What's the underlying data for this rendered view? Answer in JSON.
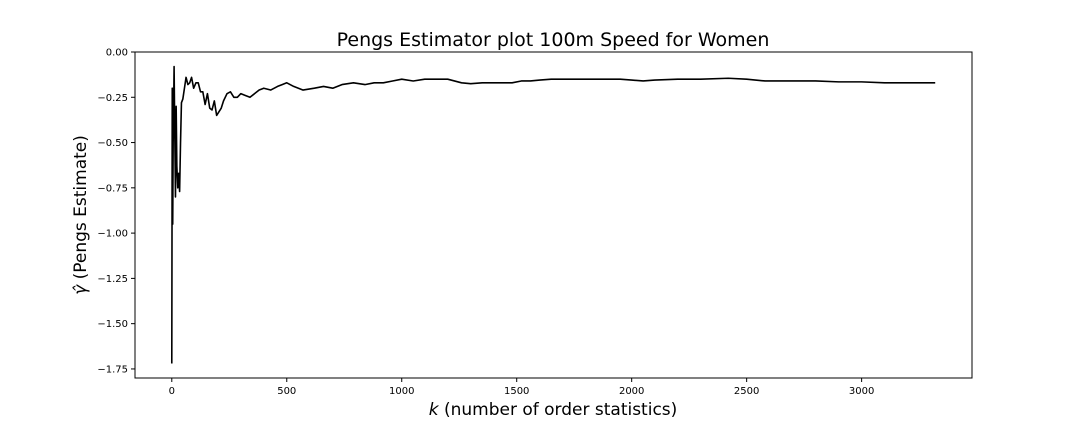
{
  "chart_data": {
    "type": "line",
    "title": "Pengs Estimator plot 100m Speed for Women",
    "xlabel_italic": "k",
    "xlabel_rest": " (number of order statistics)",
    "ylabel_symbol": "γ̂",
    "ylabel_rest": " (Pengs Estimate)",
    "xlim": [
      -160,
      3480
    ],
    "ylim": [
      -1.8,
      0.0
    ],
    "xticks": [
      0,
      500,
      1000,
      1500,
      2000,
      2500,
      3000
    ],
    "xtick_labels": [
      "0",
      "500",
      "1000",
      "1500",
      "2000",
      "2500",
      "3000"
    ],
    "yticks": [
      0.0,
      -0.25,
      -0.5,
      -0.75,
      -1.0,
      -1.25,
      -1.5,
      -1.75
    ],
    "ytick_labels": [
      "0.00",
      "−0.25",
      "−0.50",
      "−0.75",
      "−1.00",
      "−1.25",
      "−1.50",
      "−1.75"
    ],
    "grid": false,
    "line_color": "#000000",
    "series": [
      {
        "x": [
          0,
          2,
          4,
          6,
          8,
          10,
          13,
          16,
          19,
          22,
          26,
          30,
          34,
          38,
          42,
          48,
          55,
          62,
          70,
          78,
          86,
          95,
          105,
          115,
          125,
          135,
          145,
          155,
          165,
          175,
          185,
          195,
          205,
          215,
          225,
          240,
          255,
          270,
          285,
          300,
          320,
          340,
          360,
          380,
          400,
          430,
          460,
          480,
          500,
          530,
          570,
          620,
          660,
          700,
          740,
          790,
          840,
          880,
          920,
          960,
          1000,
          1050,
          1100,
          1150,
          1200,
          1260,
          1300,
          1350,
          1400,
          1450,
          1480,
          1520,
          1560,
          1600,
          1650,
          1700,
          1750,
          1800,
          1850,
          1900,
          1950,
          2000,
          2050,
          2100,
          2200,
          2300,
          2420,
          2500,
          2580,
          2700,
          2800,
          2900,
          3000,
          3100,
          3200,
          3320
        ],
        "y": [
          -1.72,
          -0.2,
          -0.95,
          -0.5,
          -0.3,
          -0.08,
          -0.45,
          -0.8,
          -0.3,
          -0.63,
          -0.75,
          -0.67,
          -0.77,
          -0.5,
          -0.28,
          -0.26,
          -0.2,
          -0.14,
          -0.18,
          -0.17,
          -0.14,
          -0.2,
          -0.17,
          -0.17,
          -0.22,
          -0.22,
          -0.29,
          -0.23,
          -0.31,
          -0.32,
          -0.27,
          -0.35,
          -0.33,
          -0.31,
          -0.27,
          -0.23,
          -0.22,
          -0.25,
          -0.25,
          -0.23,
          -0.24,
          -0.25,
          -0.23,
          -0.21,
          -0.2,
          -0.21,
          -0.19,
          -0.18,
          -0.17,
          -0.19,
          -0.21,
          -0.2,
          -0.19,
          -0.2,
          -0.18,
          -0.17,
          -0.18,
          -0.17,
          -0.17,
          -0.16,
          -0.15,
          -0.16,
          -0.15,
          -0.15,
          -0.15,
          -0.17,
          -0.175,
          -0.17,
          -0.17,
          -0.17,
          -0.17,
          -0.16,
          -0.16,
          -0.155,
          -0.15,
          -0.15,
          -0.15,
          -0.15,
          -0.15,
          -0.15,
          -0.15,
          -0.155,
          -0.16,
          -0.155,
          -0.15,
          -0.15,
          -0.145,
          -0.15,
          -0.16,
          -0.16,
          -0.16,
          -0.165,
          -0.165,
          -0.17,
          -0.17,
          -0.17
        ]
      }
    ]
  }
}
